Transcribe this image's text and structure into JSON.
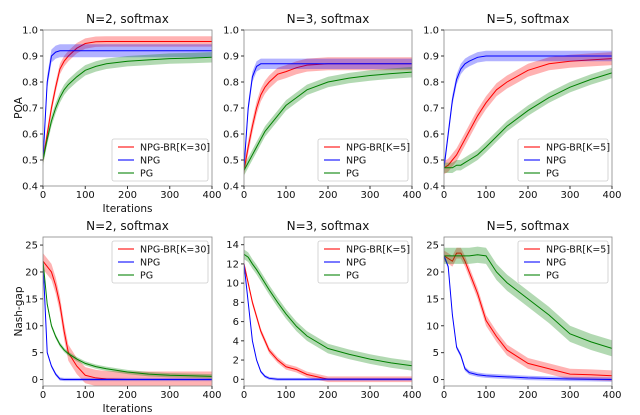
{
  "chart_data": [
    {
      "type": "line",
      "title": "N=2, softmax",
      "xlabel": "Iterations",
      "ylabel": "POA",
      "xlim": [
        0,
        400
      ],
      "ylim": [
        0.4,
        1.0
      ],
      "yticks": [
        "0.4",
        "0.5",
        "0.6",
        "0.7",
        "0.8",
        "0.9",
        "1.0"
      ],
      "ytick_values": [
        0.4,
        0.5,
        0.6,
        0.7,
        0.8,
        0.9,
        1.0
      ],
      "xticks": [
        "0",
        "100",
        "200",
        "300",
        "400"
      ],
      "legend": "bottom-right",
      "x": [
        0,
        10,
        20,
        30,
        40,
        50,
        60,
        80,
        100,
        125,
        150,
        200,
        250,
        300,
        350,
        400
      ],
      "series": [
        {
          "name": "NPG-BR[K=30]",
          "color": "#ff0000",
          "band": 0.02,
          "values": [
            0.5,
            0.6,
            0.7,
            0.78,
            0.85,
            0.88,
            0.9,
            0.93,
            0.948,
            0.955,
            0.956,
            0.956,
            0.956,
            0.956,
            0.956,
            0.956
          ]
        },
        {
          "name": "NPG",
          "color": "#0000ff",
          "band": 0.025,
          "values": [
            0.5,
            0.8,
            0.9,
            0.915,
            0.92,
            0.92,
            0.92,
            0.92,
            0.92,
            0.92,
            0.92,
            0.92,
            0.92,
            0.92,
            0.92,
            0.92
          ]
        },
        {
          "name": "PG",
          "color": "#008000",
          "band": 0.02,
          "values": [
            0.5,
            0.58,
            0.65,
            0.7,
            0.74,
            0.77,
            0.79,
            0.82,
            0.845,
            0.86,
            0.87,
            0.88,
            0.885,
            0.89,
            0.892,
            0.895
          ]
        }
      ]
    },
    {
      "type": "line",
      "title": "N=3, softmax",
      "xlabel": "",
      "ylabel": "",
      "xlim": [
        0,
        400
      ],
      "ylim": [
        0.4,
        1.0
      ],
      "yticks": [
        "0.4",
        "0.5",
        "0.6",
        "0.7",
        "0.8",
        "0.9",
        "1.0"
      ],
      "ytick_values": [
        0.4,
        0.5,
        0.6,
        0.7,
        0.8,
        0.9,
        1.0
      ],
      "xticks": [
        "0",
        "100",
        "200",
        "300",
        "400"
      ],
      "legend": "bottom-right",
      "x": [
        0,
        10,
        20,
        30,
        40,
        50,
        60,
        80,
        100,
        125,
        150,
        200,
        250,
        300,
        350,
        400
      ],
      "series": [
        {
          "name": "NPG-BR[K=5]",
          "color": "#ff0000",
          "band": 0.025,
          "values": [
            0.46,
            0.55,
            0.63,
            0.7,
            0.75,
            0.78,
            0.8,
            0.83,
            0.84,
            0.855,
            0.865,
            0.87,
            0.87,
            0.87,
            0.87,
            0.87
          ]
        },
        {
          "name": "NPG",
          "color": "#0000ff",
          "band": 0.02,
          "values": [
            0.47,
            0.7,
            0.82,
            0.86,
            0.87,
            0.87,
            0.87,
            0.87,
            0.87,
            0.87,
            0.87,
            0.87,
            0.87,
            0.87,
            0.87,
            0.87
          ]
        },
        {
          "name": "PG",
          "color": "#008000",
          "band": 0.02,
          "values": [
            0.46,
            0.49,
            0.52,
            0.55,
            0.58,
            0.61,
            0.63,
            0.67,
            0.71,
            0.74,
            0.77,
            0.8,
            0.815,
            0.825,
            0.832,
            0.838
          ]
        }
      ]
    },
    {
      "type": "line",
      "title": "N=5, softmax",
      "xlabel": "",
      "ylabel": "",
      "xlim": [
        0,
        400
      ],
      "ylim": [
        0.4,
        1.0
      ],
      "yticks": [
        "0.4",
        "0.5",
        "0.6",
        "0.7",
        "0.8",
        "0.9",
        "1.0"
      ],
      "ytick_values": [
        0.4,
        0.5,
        0.6,
        0.7,
        0.8,
        0.9,
        1.0
      ],
      "xticks": [
        "0",
        "100",
        "200",
        "300",
        "400"
      ],
      "legend": "bottom-right",
      "x": [
        0,
        10,
        20,
        30,
        40,
        50,
        60,
        80,
        100,
        125,
        150,
        200,
        250,
        300,
        350,
        400
      ],
      "series": [
        {
          "name": "NPG-BR[K=5]",
          "color": "#ff0000",
          "band": 0.025,
          "values": [
            0.47,
            0.48,
            0.5,
            0.52,
            0.55,
            0.58,
            0.61,
            0.67,
            0.72,
            0.77,
            0.8,
            0.845,
            0.87,
            0.88,
            0.885,
            0.89
          ]
        },
        {
          "name": "NPG",
          "color": "#0000ff",
          "band": 0.02,
          "values": [
            0.47,
            0.6,
            0.73,
            0.81,
            0.85,
            0.87,
            0.88,
            0.895,
            0.9,
            0.9,
            0.9,
            0.9,
            0.9,
            0.9,
            0.9,
            0.9
          ]
        },
        {
          "name": "PG",
          "color": "#008000",
          "band": 0.02,
          "values": [
            0.47,
            0.47,
            0.47,
            0.48,
            0.48,
            0.49,
            0.5,
            0.52,
            0.55,
            0.59,
            0.63,
            0.69,
            0.74,
            0.78,
            0.81,
            0.835
          ]
        }
      ]
    },
    {
      "type": "line",
      "title": "N=2, softmax",
      "xlabel": "Iterations",
      "ylabel": "Nash-gap",
      "xlim": [
        0,
        400
      ],
      "ylim": [
        -1.2,
        26.5
      ],
      "yticks": [
        "0",
        "5",
        "10",
        "15",
        "20",
        "25"
      ],
      "ytick_values": [
        0,
        5,
        10,
        15,
        20,
        25
      ],
      "xticks": [
        "0",
        "100",
        "200",
        "300",
        "400"
      ],
      "legend": "top-right",
      "x": [
        0,
        10,
        20,
        30,
        40,
        50,
        60,
        80,
        100,
        125,
        150,
        200,
        250,
        300,
        350,
        400
      ],
      "series": [
        {
          "name": "NPG-BR[K=30]",
          "color": "#ff0000",
          "band": 1.5,
          "values": [
            22,
            21,
            20,
            17.5,
            14,
            9,
            5,
            2.5,
            0.8,
            0.3,
            0.1,
            0,
            0,
            0,
            0,
            0
          ]
        },
        {
          "name": "NPG",
          "color": "#0000ff",
          "band": 0.3,
          "values": [
            22,
            5,
            2.5,
            1,
            0.1,
            0,
            0,
            0,
            0,
            0,
            0,
            0,
            0,
            0,
            0,
            0
          ]
        },
        {
          "name": "PG",
          "color": "#008000",
          "band": 0.4,
          "values": [
            22,
            14,
            10,
            8,
            6.5,
            5.5,
            4.8,
            3.8,
            3,
            2.4,
            2,
            1.4,
            1,
            0.8,
            0.7,
            0.6
          ]
        }
      ]
    },
    {
      "type": "line",
      "title": "N=3, softmax",
      "xlabel": "",
      "ylabel": "",
      "xlim": [
        0,
        400
      ],
      "ylim": [
        -0.7,
        14.8
      ],
      "yticks": [
        "0",
        "2",
        "4",
        "6",
        "8",
        "10",
        "12",
        "14"
      ],
      "ytick_values": [
        0,
        2,
        4,
        6,
        8,
        10,
        12,
        14
      ],
      "xticks": [
        "0",
        "100",
        "200",
        "300",
        "400"
      ],
      "legend": "top-right",
      "x": [
        0,
        10,
        20,
        30,
        40,
        50,
        60,
        80,
        100,
        125,
        150,
        200,
        250,
        300,
        350,
        400
      ],
      "series": [
        {
          "name": "NPG-BR[K=5]",
          "color": "#ff0000",
          "band": 0.3,
          "values": [
            12,
            10,
            8,
            6.5,
            5,
            4,
            3,
            2,
            1.3,
            1,
            0.5,
            0,
            0,
            0,
            0,
            0
          ]
        },
        {
          "name": "NPG",
          "color": "#0000ff",
          "band": 0.15,
          "values": [
            12,
            8,
            4,
            2,
            0.8,
            0.3,
            0.1,
            0,
            0,
            0,
            0,
            0,
            0,
            0,
            0,
            0
          ]
        },
        {
          "name": "PG",
          "color": "#008000",
          "band": 0.5,
          "values": [
            13,
            12.7,
            12,
            11.4,
            10.7,
            10,
            9.3,
            8,
            6.8,
            5.5,
            4.5,
            3.2,
            2.6,
            2.1,
            1.7,
            1.4
          ]
        }
      ]
    },
    {
      "type": "line",
      "title": "N=5, softmax",
      "xlabel": "",
      "ylabel": "",
      "xlim": [
        0,
        400
      ],
      "ylim": [
        -1.2,
        26.5
      ],
      "yticks": [
        "0",
        "5",
        "10",
        "15",
        "20",
        "25"
      ],
      "ytick_values": [
        0,
        5,
        10,
        15,
        20,
        25
      ],
      "xticks": [
        "0",
        "100",
        "200",
        "300",
        "400"
      ],
      "legend": "top-right",
      "x": [
        0,
        10,
        20,
        30,
        40,
        50,
        60,
        80,
        100,
        125,
        150,
        200,
        250,
        300,
        350,
        400
      ],
      "series": [
        {
          "name": "NPG-BR[K=5]",
          "color": "#ff0000",
          "band": 1.0,
          "values": [
            23,
            22.5,
            22,
            23.5,
            23.5,
            22,
            20,
            16,
            11,
            8,
            5.5,
            3,
            2,
            1,
            0.9,
            0.7
          ]
        },
        {
          "name": "NPG",
          "color": "#0000ff",
          "band": 0.4,
          "values": [
            23,
            21,
            12,
            6,
            4.5,
            2,
            1.3,
            0.9,
            0.7,
            0.6,
            0.5,
            0.3,
            0.2,
            0.1,
            0.05,
            0
          ]
        },
        {
          "name": "PG",
          "color": "#008000",
          "band": 1.5,
          "values": [
            23,
            23,
            23,
            23,
            23,
            23,
            23,
            23.2,
            23,
            20,
            18,
            15,
            12,
            8.5,
            7,
            5.8
          ]
        }
      ]
    }
  ]
}
